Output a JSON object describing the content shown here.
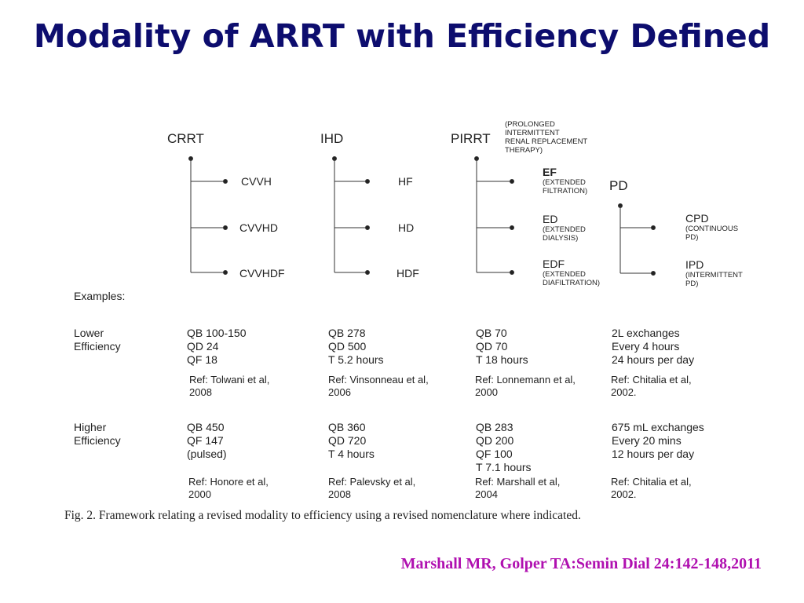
{
  "title": "Modality of ARRT with Efficiency Defined",
  "groups": {
    "crrt": {
      "name": "CRRT",
      "children": [
        "CVVH",
        "CVVHD",
        "CVVHDF"
      ]
    },
    "ihd": {
      "name": "IHD",
      "children": [
        "HF",
        "HD",
        "HDF"
      ]
    },
    "pirrt": {
      "name": "PIRRT",
      "note": [
        "(PROLONGED",
        "INTERMITTENT",
        "RENAL REPLACEMENT",
        "THERAPY)"
      ],
      "children": [
        {
          "label": "EF",
          "note": [
            "(EXTENDED",
            "FILTRATION)"
          ]
        },
        {
          "label": "ED",
          "note": [
            "(EXTENDED",
            "DIALYSIS)"
          ]
        },
        {
          "label": "EDF",
          "note": [
            "(EXTENDED",
            "DIAFILTRATION)"
          ]
        }
      ]
    },
    "pd": {
      "name": "PD",
      "children": [
        {
          "label": "CPD",
          "note": [
            "(CONTINUOUS",
            "PD)"
          ]
        },
        {
          "label": "IPD",
          "note": [
            "(INTERMITTENT",
            "PD)"
          ]
        }
      ]
    }
  },
  "examples_label": "Examples:",
  "lower": {
    "label": [
      "Lower",
      "Efficiency"
    ],
    "crrt": {
      "lines": [
        "QB 100-150",
        "QD 24",
        "QF 18"
      ],
      "ref": [
        "Ref: Tolwani et al,",
        "2008"
      ]
    },
    "ihd": {
      "lines": [
        "QB 278",
        "QD 500",
        "T 5.2 hours"
      ],
      "ref": [
        "Ref: Vinsonneau et al,",
        "2006"
      ]
    },
    "pirrt": {
      "lines": [
        "QB 70",
        "QD 70",
        "T 18 hours"
      ],
      "ref": [
        "Ref: Lonnemann et al,",
        "2000"
      ]
    },
    "pd": {
      "lines": [
        "2L exchanges",
        "Every 4 hours",
        "24 hours per day"
      ],
      "ref": [
        "Ref: Chitalia et al,",
        "2002."
      ]
    }
  },
  "higher": {
    "label": [
      "Higher",
      "Efficiency"
    ],
    "crrt": {
      "lines": [
        "QB 450",
        "QF 147",
        "(pulsed)"
      ],
      "ref": [
        "Ref: Honore et al,",
        "2000"
      ]
    },
    "ihd": {
      "lines": [
        "QB 360",
        "QD 720",
        "T 4 hours"
      ],
      "ref": [
        "Ref: Palevsky et al,",
        "2008"
      ]
    },
    "pirrt": {
      "lines": [
        "QB 283",
        "QD 200",
        "QF 100",
        "T 7.1 hours"
      ],
      "ref": [
        "Ref: Marshall et al,",
        "2004"
      ]
    },
    "pd": {
      "lines": [
        "675 mL exchanges",
        "Every 20 mins",
        "12 hours per day"
      ],
      "ref": [
        "Ref: Chitalia et al,",
        "2002."
      ]
    }
  },
  "caption": "Fig. 2.  Framework relating a revised modality to efficiency using a revised nomenclature where indicated.",
  "citation": "Marshall MR, Golper TA:Semin Dial 24:142-148,2011"
}
